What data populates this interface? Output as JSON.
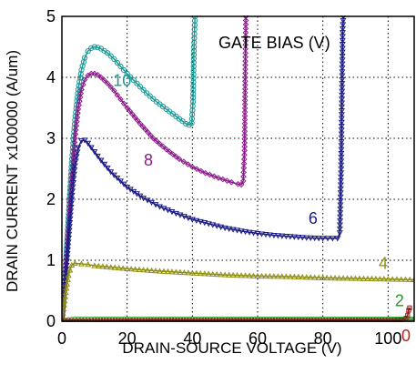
{
  "chart_data": {
    "type": "line",
    "title": "",
    "xlabel": "DRAIN-SOURCE VOLTAGE (V)",
    "ylabel": "DRAIN CURRENT x100000 (A/um)",
    "xlim": [
      0,
      108
    ],
    "ylim": [
      0,
      5
    ],
    "xticks": [
      0,
      20,
      40,
      60,
      80,
      100
    ],
    "yticks": [
      0,
      1,
      2,
      3,
      4,
      5
    ],
    "grid": "dotted",
    "legend_title": "GATE BIAS (V)",
    "series": [
      {
        "name": "10",
        "color": "#1a9a96",
        "marker": "circle",
        "x": [
          0,
          1,
          2,
          3,
          4,
          5,
          6,
          7,
          8,
          9,
          10,
          11,
          12,
          14,
          16,
          18,
          20,
          23,
          26,
          29,
          32,
          35,
          37,
          38,
          39,
          39.8,
          40.2,
          40.5,
          40.8
        ],
        "y": [
          0,
          0.8,
          1.7,
          2.6,
          3.3,
          3.8,
          4.12,
          4.32,
          4.43,
          4.48,
          4.5,
          4.49,
          4.47,
          4.4,
          4.3,
          4.18,
          4.06,
          3.9,
          3.74,
          3.6,
          3.48,
          3.36,
          3.28,
          3.24,
          3.22,
          3.25,
          3.6,
          4.5,
          5
        ]
      },
      {
        "name": "8",
        "color": "#8b1a8b",
        "marker": "diamond",
        "x": [
          0,
          1,
          2,
          3,
          4,
          5,
          6,
          7,
          8,
          9,
          10,
          11,
          12,
          14,
          16,
          18,
          20,
          24,
          28,
          32,
          36,
          40,
          44,
          48,
          52,
          54,
          55,
          55.6,
          56,
          56.2,
          56.4
        ],
        "y": [
          0,
          0.75,
          1.55,
          2.35,
          3.0,
          3.48,
          3.8,
          3.96,
          4.03,
          4.06,
          4.06,
          4.04,
          4.0,
          3.9,
          3.78,
          3.64,
          3.5,
          3.24,
          3.0,
          2.82,
          2.66,
          2.53,
          2.43,
          2.35,
          2.28,
          2.25,
          2.24,
          2.3,
          2.8,
          4.0,
          5
        ]
      },
      {
        "name": "6",
        "color": "#1b1b84",
        "marker": "triangle-down",
        "x": [
          0,
          1,
          2,
          3,
          4,
          5,
          6,
          7,
          8,
          10,
          12,
          15,
          20,
          25,
          30,
          35,
          40,
          45,
          50,
          55,
          60,
          65,
          70,
          75,
          80,
          83,
          84.5,
          85.2,
          85.6,
          85.9,
          86.1,
          86.3
        ],
        "y": [
          0,
          0.6,
          1.3,
          2.0,
          2.55,
          2.85,
          2.96,
          2.97,
          2.92,
          2.78,
          2.64,
          2.45,
          2.2,
          2.02,
          1.88,
          1.77,
          1.67,
          1.6,
          1.53,
          1.48,
          1.44,
          1.41,
          1.39,
          1.37,
          1.36,
          1.36,
          1.36,
          1.45,
          2.5,
          3.9,
          4.8,
          5
        ]
      },
      {
        "name": "4",
        "color": "#8f8f14",
        "marker": "triangle-up",
        "x": [
          0,
          1,
          2,
          3,
          4,
          6,
          8,
          10,
          20,
          30,
          40,
          50,
          60,
          70,
          80,
          90,
          100,
          108
        ],
        "y": [
          0,
          0.4,
          0.75,
          0.92,
          0.95,
          0.94,
          0.93,
          0.91,
          0.86,
          0.82,
          0.79,
          0.76,
          0.74,
          0.73,
          0.71,
          0.7,
          0.69,
          0.68
        ]
      },
      {
        "name": "2",
        "color": "#2a9a2a",
        "marker": "circle",
        "x": [
          0,
          2,
          4,
          10,
          30,
          50,
          70,
          90,
          108
        ],
        "y": [
          0,
          0.02,
          0.03,
          0.03,
          0.03,
          0.03,
          0.03,
          0.03,
          0.03
        ]
      },
      {
        "name": "0",
        "color": "#8b1a1a",
        "marker": "square",
        "x": [
          0,
          20,
          40,
          60,
          80,
          100,
          104,
          105.5,
          106,
          106.3,
          106.6
        ],
        "y": [
          0,
          0.005,
          0.008,
          0.01,
          0.01,
          0.012,
          0.02,
          0.05,
          0.1,
          0.18,
          0.22
        ]
      }
    ],
    "annotations": [
      {
        "text": "10",
        "x": 18.5,
        "y": 3.86,
        "color": "#1a9a96"
      },
      {
        "text": "8",
        "x": 26.5,
        "y": 2.55,
        "color": "#8b1a8b"
      },
      {
        "text": "6",
        "x": 77,
        "y": 1.6,
        "color": "#1b1b84"
      },
      {
        "text": "4",
        "x": 98.5,
        "y": 0.86,
        "color": "#8f8f14"
      },
      {
        "text": "2",
        "x": 103.5,
        "y": 0.25,
        "color": "#2a9a2a"
      },
      {
        "text": "0",
        "x": 105.5,
        "y": -0.33,
        "color": "#b22222"
      }
    ]
  }
}
